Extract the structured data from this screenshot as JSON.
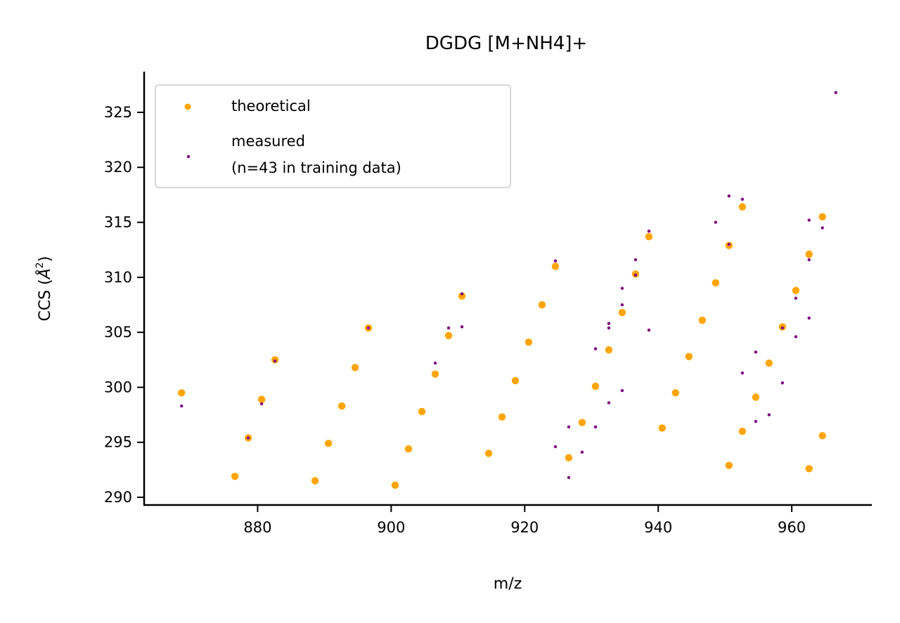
{
  "chart_data": {
    "type": "scatter",
    "title": "DGDG [M+NH4]+",
    "xlabel": "m/z",
    "ylabel": "CCS (Å²)",
    "ylabel_base": "CCS (",
    "ylabel_unit": "Å",
    "ylabel_sup": "2",
    "ylabel_close": ")",
    "xlim": [
      863,
      972
    ],
    "ylim": [
      289.3,
      328.7
    ],
    "xticks": [
      880,
      900,
      920,
      940,
      960
    ],
    "yticks": [
      290,
      295,
      300,
      305,
      310,
      315,
      320,
      325
    ],
    "grid": false,
    "legend_position": "top-left",
    "series": [
      {
        "name": "theoretical",
        "color": "#ffa500",
        "points": [
          [
            868.6,
            299.5
          ],
          [
            876.6,
            291.9
          ],
          [
            878.6,
            295.4
          ],
          [
            880.6,
            298.9
          ],
          [
            882.6,
            302.5
          ],
          [
            888.6,
            291.5
          ],
          [
            890.6,
            294.9
          ],
          [
            892.6,
            298.3
          ],
          [
            894.6,
            301.8
          ],
          [
            896.6,
            305.4
          ],
          [
            900.6,
            291.1
          ],
          [
            902.6,
            294.4
          ],
          [
            904.6,
            297.8
          ],
          [
            906.6,
            301.2
          ],
          [
            908.6,
            304.7
          ],
          [
            910.6,
            308.3
          ],
          [
            914.6,
            294.0
          ],
          [
            916.6,
            297.3
          ],
          [
            918.6,
            300.6
          ],
          [
            920.6,
            304.1
          ],
          [
            922.6,
            307.5
          ],
          [
            924.6,
            311.0
          ],
          [
            926.6,
            293.6
          ],
          [
            928.6,
            296.8
          ],
          [
            930.6,
            300.1
          ],
          [
            932.6,
            303.4
          ],
          [
            934.6,
            306.8
          ],
          [
            936.6,
            310.3
          ],
          [
            938.6,
            313.7
          ],
          [
            940.6,
            296.3
          ],
          [
            942.6,
            299.5
          ],
          [
            944.6,
            302.8
          ],
          [
            946.6,
            306.1
          ],
          [
            948.6,
            309.5
          ],
          [
            950.6,
            312.9
          ],
          [
            952.6,
            316.4
          ],
          [
            950.6,
            292.9
          ],
          [
            952.6,
            296.0
          ],
          [
            954.6,
            299.1
          ],
          [
            956.6,
            302.2
          ],
          [
            958.6,
            305.5
          ],
          [
            960.6,
            308.8
          ],
          [
            962.6,
            312.1
          ],
          [
            964.6,
            315.5
          ],
          [
            962.6,
            292.6
          ],
          [
            964.6,
            295.6
          ]
        ]
      },
      {
        "name": "measured\n(n=43 in training data)",
        "name_lines": [
          "measured",
          "(n=43 in training data)"
        ],
        "color": "#800080",
        "points": [
          [
            868.6,
            298.3
          ],
          [
            878.6,
            295.4
          ],
          [
            880.6,
            298.5
          ],
          [
            882.6,
            302.4
          ],
          [
            896.6,
            305.4
          ],
          [
            906.6,
            302.2
          ],
          [
            908.6,
            305.4
          ],
          [
            910.6,
            308.5
          ],
          [
            910.6,
            305.5
          ],
          [
            924.6,
            311.5
          ],
          [
            924.6,
            294.6
          ],
          [
            926.6,
            296.4
          ],
          [
            926.6,
            291.8
          ],
          [
            928.6,
            294.1
          ],
          [
            930.6,
            303.5
          ],
          [
            930.6,
            296.4
          ],
          [
            932.6,
            305.8
          ],
          [
            932.6,
            305.4
          ],
          [
            932.6,
            298.6
          ],
          [
            934.6,
            309.0
          ],
          [
            934.6,
            307.5
          ],
          [
            934.6,
            299.7
          ],
          [
            936.6,
            311.6
          ],
          [
            936.6,
            310.2
          ],
          [
            938.6,
            314.2
          ],
          [
            938.6,
            305.2
          ],
          [
            948.6,
            315.0
          ],
          [
            950.6,
            317.4
          ],
          [
            950.6,
            313.0
          ],
          [
            952.6,
            317.1
          ],
          [
            952.6,
            301.3
          ],
          [
            954.6,
            303.2
          ],
          [
            954.6,
            296.9
          ],
          [
            956.6,
            297.5
          ],
          [
            958.6,
            305.4
          ],
          [
            958.6,
            300.4
          ],
          [
            960.6,
            308.1
          ],
          [
            960.6,
            304.6
          ],
          [
            962.6,
            315.2
          ],
          [
            962.6,
            311.6
          ],
          [
            962.6,
            306.3
          ],
          [
            964.6,
            314.5
          ],
          [
            966.6,
            326.8
          ]
        ]
      }
    ]
  }
}
